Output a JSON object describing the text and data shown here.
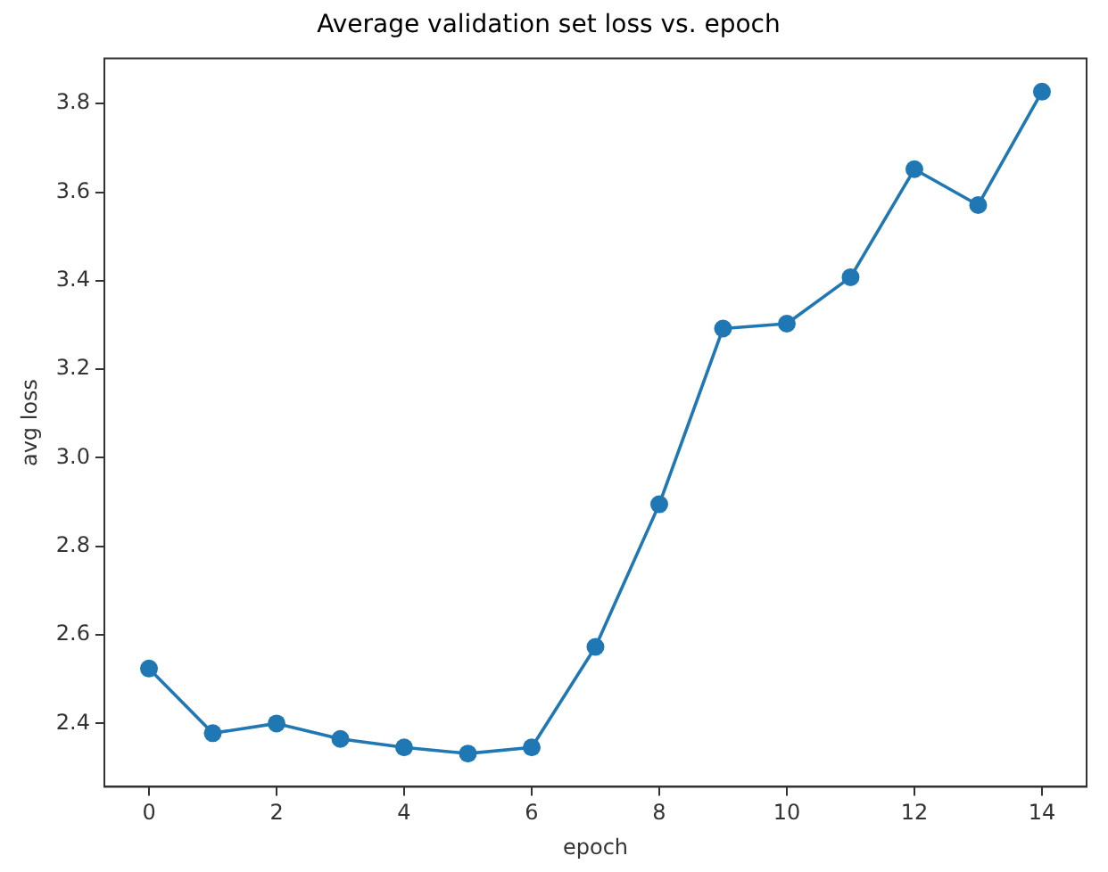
{
  "chart_data": {
    "type": "line",
    "title": "Average validation set loss vs. epoch",
    "xlabel": "epoch",
    "ylabel": "avg loss",
    "x": [
      0,
      1,
      2,
      3,
      4,
      5,
      6,
      7,
      8,
      9,
      10,
      11,
      12,
      13,
      14
    ],
    "series": [
      {
        "color": "#1f77b4",
        "values": [
          2.524,
          2.378,
          2.4,
          2.365,
          2.346,
          2.332,
          2.346,
          2.573,
          2.895,
          3.292,
          3.303,
          3.408,
          3.652,
          3.571,
          3.827
        ]
      }
    ],
    "xlim": [
      -0.7,
      14.7
    ],
    "xticks": [
      0,
      2,
      4,
      6,
      8,
      10,
      12,
      14
    ],
    "ylim": [
      2.257,
      3.902
    ],
    "yticks": [
      2.4,
      2.6,
      2.8,
      {
        "value": 3,
        "label": "3.0"
      },
      3.2,
      3.4,
      3.6,
      3.8
    ],
    "grid": false,
    "legend": false,
    "marker": "circle",
    "line_style": "solid"
  }
}
